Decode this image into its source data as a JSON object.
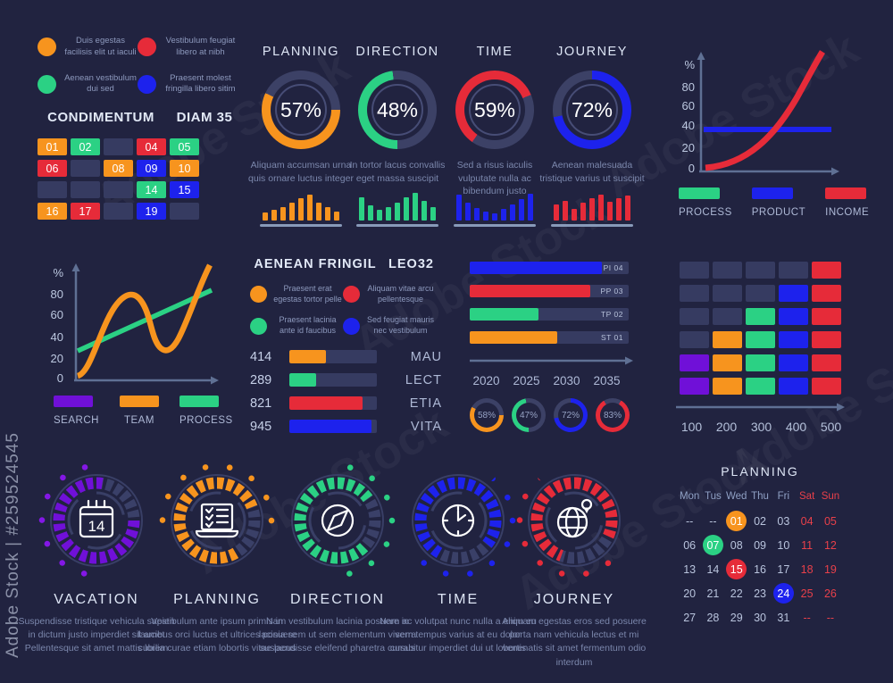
{
  "palette": {
    "o": "#f7941e",
    "g": "#2bd184",
    "r": "#e62b39",
    "b": "#1d22ed",
    "p": "#7010d8",
    "slate": "#363b61",
    "bg": "#212340",
    "weekend_red": "#e8404a"
  },
  "watermark": {
    "vertical": "Adobe Stock | #259524545",
    "tile": "Adobe Stock"
  },
  "legend_panel": {
    "items": [
      {
        "c": "o",
        "text": "Duis egestas facilisis elit ut iaculi"
      },
      {
        "c": "r",
        "text": "Vestibulum feugiat libero at nibh"
      },
      {
        "c": "g",
        "text": "Aenean vestibulum dui sed"
      },
      {
        "c": "b",
        "text": "Praesent molest fringilla libero sitim"
      }
    ],
    "title_left": "CONDIMENTUM",
    "title_right": "DIAM 35",
    "grid": [
      {
        "t": "01",
        "c": "o"
      },
      {
        "t": "02",
        "c": "g"
      },
      {
        "t": "",
        "c": "s"
      },
      {
        "t": "04",
        "c": "r"
      },
      {
        "t": "05",
        "c": "g"
      },
      {
        "t": "06",
        "c": "r"
      },
      {
        "t": "",
        "c": "s"
      },
      {
        "t": "08",
        "c": "o"
      },
      {
        "t": "09",
        "c": "b"
      },
      {
        "t": "10",
        "c": "o"
      },
      {
        "t": "",
        "c": "s"
      },
      {
        "t": "",
        "c": "s"
      },
      {
        "t": "",
        "c": "s"
      },
      {
        "t": "14",
        "c": "g"
      },
      {
        "t": "15",
        "c": "b"
      },
      {
        "t": "16",
        "c": "o"
      },
      {
        "t": "17",
        "c": "r"
      },
      {
        "t": "",
        "c": "s"
      },
      {
        "t": "19",
        "c": "b"
      },
      {
        "t": "",
        "c": "s"
      }
    ]
  },
  "donut_cards": [
    {
      "title": "PLANNING",
      "value": "57%",
      "donut": {
        "pct": 57,
        "from": 90,
        "c": "o"
      },
      "desc": "Aliquam accumsan urna quis ornare luctus integer",
      "bars": [
        28,
        38,
        48,
        62,
        78,
        90,
        62,
        48,
        30
      ],
      "bars_c": "o"
    },
    {
      "title": "DIRECTION",
      "value": "48%",
      "donut": {
        "pct": 48,
        "from": 180,
        "c": "g"
      },
      "desc": "In tortor lacus convallis eget massa suscipit",
      "bars": [
        82,
        52,
        38,
        46,
        62,
        82,
        96,
        70,
        48
      ],
      "bars_c": "g"
    },
    {
      "title": "TIME",
      "value": "59%",
      "donut": {
        "pct": 59,
        "from": 215,
        "c": "r"
      },
      "desc": "Sed a risus iaculis vulputate nulla ac bibendum justo",
      "bars": [
        92,
        62,
        45,
        30,
        26,
        40,
        56,
        74,
        94
      ],
      "bars_c": "b"
    },
    {
      "title": "JOURNEY",
      "value": "72%",
      "donut": {
        "pct": 72,
        "from": 0,
        "c": "b"
      },
      "desc": "Aenean malesuada tristique varius ut suscipit",
      "bars": [
        56,
        70,
        40,
        62,
        78,
        92,
        66,
        78,
        88
      ],
      "bars_c": "r"
    }
  ],
  "growth_chart": {
    "ylabel": "%",
    "yticks": [
      "80",
      "60",
      "40",
      "20",
      "0"
    ],
    "legend": [
      {
        "c": "g",
        "label": "PROCESS"
      },
      {
        "c": "b",
        "label": "PRODUCT"
      },
      {
        "c": "r",
        "label": "INCOME"
      }
    ]
  },
  "wave_chart": {
    "ylabel": "%",
    "yticks": [
      "80",
      "60",
      "40",
      "20",
      "0"
    ],
    "legend": [
      {
        "c": "p",
        "label": "SEARCH"
      },
      {
        "c": "o",
        "label": "TEAM"
      },
      {
        "c": "g",
        "label": "PROCESS"
      }
    ]
  },
  "fringil": {
    "title": "AENEAN FRINGIL",
    "subtitle": "LEO32",
    "legend": [
      {
        "c": "o",
        "text": "Praesent erat egestas tortor pelle"
      },
      {
        "c": "r",
        "text": "Aliquam vitae arcu pellentesque"
      },
      {
        "c": "g",
        "text": "Praesent lacinia ante id faucibus"
      },
      {
        "c": "b",
        "text": "Sed feugiat mauris nec vestibulum"
      }
    ],
    "rows": [
      {
        "value": "414",
        "pct": 42,
        "c": "o",
        "label": "MAU"
      },
      {
        "value": "289",
        "pct": 31,
        "c": "g",
        "label": "LECT"
      },
      {
        "value": "821",
        "pct": 84,
        "c": "r",
        "label": "ETIA"
      },
      {
        "value": "945",
        "pct": 94,
        "c": "b",
        "label": "VITA"
      }
    ]
  },
  "timeline_panel": {
    "bars": [
      {
        "label": "PI 04",
        "pct": 83,
        "c": "b"
      },
      {
        "label": "PP 03",
        "pct": 76,
        "c": "r"
      },
      {
        "label": "TP 02",
        "pct": 43,
        "c": "g"
      },
      {
        "label": "ST 01",
        "pct": 55,
        "c": "o"
      }
    ],
    "xticks": [
      "2020",
      "2025",
      "2030",
      "2035"
    ],
    "gauges": [
      {
        "value": "58%",
        "donut": {
          "pct": 58,
          "from": 90,
          "c": "o"
        }
      },
      {
        "value": "47%",
        "donut": {
          "pct": 47,
          "from": 180,
          "c": "g"
        }
      },
      {
        "value": "72%",
        "donut": {
          "pct": 72,
          "from": 0,
          "c": "b"
        }
      },
      {
        "value": "83%",
        "donut": {
          "pct": 83,
          "from": 30,
          "c": "r"
        }
      }
    ]
  },
  "heatmap": {
    "xticks": [
      "100",
      "200",
      "300",
      "400",
      "500"
    ],
    "cells": [
      "s",
      "s",
      "s",
      "s",
      "r",
      "s",
      "s",
      "s",
      "b",
      "r",
      "s",
      "s",
      "g",
      "b",
      "r",
      "s",
      "o",
      "g",
      "b",
      "r",
      "p",
      "o",
      "g",
      "b",
      "r",
      "p",
      "o",
      "g",
      "b",
      "r"
    ]
  },
  "process_circles": [
    {
      "title": "VACATION",
      "c": "p",
      "icon": "calendar-icon",
      "icon_number": "14",
      "desc": "Suspendisse tristique vehicula sapien in dictum justo imperdiet sit amet Pellentesque sit amet mattis lorem"
    },
    {
      "title": "PLANNING",
      "c": "o",
      "icon": "notebook-icon",
      "desc": "Vestibulum ante ipsum primis in faucibus orci luctus et ultrices posuere cubilia curae etiam lobortis vitae lacus"
    },
    {
      "title": "DIRECTION",
      "c": "g",
      "icon": "compass-icon",
      "desc": "Nam vestibulum lacinia posuere in lacinia sem ut sem elementum viverra suspendisse eleifend pharetra cursus"
    },
    {
      "title": "TIME",
      "c": "b",
      "icon": "clock-icon",
      "desc": "Nam ac volutpat nunc nulla a enim eu sem tempus varius at eu dolor curabitur imperdiet dui ut lobortis"
    },
    {
      "title": "JOURNEY",
      "c": "r",
      "icon": "globe-icon",
      "desc": "Aliquam egestas eros sed posuere porta nam vehicula lectus et mi venenatis sit amet fermentum odio interdum"
    }
  ],
  "calendar": {
    "title": "PLANNING",
    "days": [
      "Mon",
      "Tus",
      "Wed",
      "Thu",
      "Fri",
      "Sat",
      "Sun"
    ],
    "rows": [
      [
        {
          "t": "--"
        },
        {
          "t": "--"
        },
        {
          "t": "01",
          "hl": "o"
        },
        {
          "t": "02"
        },
        {
          "t": "03"
        },
        {
          "t": "04",
          "wk": true
        },
        {
          "t": "05",
          "wk": true
        }
      ],
      [
        {
          "t": "06"
        },
        {
          "t": "07",
          "hl": "g"
        },
        {
          "t": "08"
        },
        {
          "t": "09"
        },
        {
          "t": "10"
        },
        {
          "t": "11",
          "wk": true
        },
        {
          "t": "12",
          "wk": true
        }
      ],
      [
        {
          "t": "13"
        },
        {
          "t": "14"
        },
        {
          "t": "15",
          "hl": "r"
        },
        {
          "t": "16"
        },
        {
          "t": "17"
        },
        {
          "t": "18",
          "wk": true
        },
        {
          "t": "19",
          "wk": true
        }
      ],
      [
        {
          "t": "20"
        },
        {
          "t": "21"
        },
        {
          "t": "22"
        },
        {
          "t": "23"
        },
        {
          "t": "24",
          "hl": "b"
        },
        {
          "t": "25",
          "wk": true
        },
        {
          "t": "26",
          "wk": true
        }
      ],
      [
        {
          "t": "27"
        },
        {
          "t": "28"
        },
        {
          "t": "29"
        },
        {
          "t": "30"
        },
        {
          "t": "31"
        },
        {
          "t": "--",
          "wk": true
        },
        {
          "t": "--",
          "wk": true
        }
      ]
    ]
  },
  "chart_data": [
    {
      "type": "pie",
      "variant": "donut-gauge",
      "items": [
        {
          "label": "PLANNING",
          "value": 57
        },
        {
          "label": "DIRECTION",
          "value": 48
        },
        {
          "label": "TIME",
          "value": 59
        },
        {
          "label": "JOURNEY",
          "value": 72
        }
      ]
    },
    {
      "type": "bar",
      "title": "planning-mini-bars",
      "values": [
        28,
        38,
        48,
        62,
        78,
        90,
        62,
        48,
        30
      ],
      "color": "#f7941e"
    },
    {
      "type": "bar",
      "title": "direction-mini-bars",
      "values": [
        82,
        52,
        38,
        46,
        62,
        82,
        96,
        70,
        48
      ],
      "color": "#2bd184"
    },
    {
      "type": "bar",
      "title": "time-mini-bars",
      "values": [
        92,
        62,
        45,
        30,
        26,
        40,
        56,
        74,
        94
      ],
      "color": "#1d22ed"
    },
    {
      "type": "bar",
      "title": "journey-mini-bars",
      "values": [
        56,
        70,
        40,
        62,
        78,
        92,
        66,
        78,
        88
      ],
      "color": "#e62b39"
    },
    {
      "type": "line",
      "title": "growth-chart",
      "ylabel": "%",
      "ylim": [
        0,
        100
      ],
      "yticks": [
        0,
        20,
        40,
        60,
        80
      ],
      "legend_position": "bottom",
      "series": [
        {
          "name": "INCOME",
          "color": "#e62b39",
          "y": [
            2,
            6,
            13,
            24,
            38,
            56,
            78,
            100
          ]
        },
        {
          "name": "PRODUCT",
          "color": "#1d22ed",
          "y": [
            38,
            38,
            38,
            38,
            38,
            38,
            38,
            38
          ]
        },
        {
          "name": "PROCESS",
          "color": "#2bd184",
          "y": []
        }
      ]
    },
    {
      "type": "line",
      "title": "wave-chart",
      "ylabel": "%",
      "ylim": [
        0,
        100
      ],
      "yticks": [
        0,
        20,
        40,
        60,
        80
      ],
      "legend_position": "bottom",
      "series": [
        {
          "name": "TEAM",
          "color": "#f7941e",
          "y": [
            2,
            18,
            55,
            78,
            80,
            62,
            35,
            30,
            48,
            78,
            95
          ]
        },
        {
          "name": "PROCESS",
          "color": "#2bd184",
          "y": [
            25,
            82
          ]
        },
        {
          "name": "SEARCH",
          "color": "#7010d8",
          "y": []
        }
      ]
    },
    {
      "type": "bar",
      "variant": "horizontal",
      "title": "AENEAN FRINGIL LEO32",
      "categories": [
        "MAU",
        "LECT",
        "ETIA",
        "VITA"
      ],
      "values": [
        414,
        289,
        821,
        945
      ],
      "fill_pct": [
        42,
        31,
        84,
        94
      ]
    },
    {
      "type": "bar",
      "variant": "horizontal",
      "title": "timeline-bars",
      "categories": [
        "PI 04",
        "PP 03",
        "TP 02",
        "ST 01"
      ],
      "fill_pct": [
        83,
        76,
        43,
        55
      ],
      "xticks": [
        2020,
        2025,
        2030,
        2035
      ],
      "gauges": [
        58,
        47,
        72,
        83
      ]
    },
    {
      "type": "heatmap",
      "xticks": [
        100,
        200,
        300,
        400,
        500
      ],
      "matrix": [
        [
          "s",
          "s",
          "s",
          "s",
          "r"
        ],
        [
          "s",
          "s",
          "s",
          "b",
          "r"
        ],
        [
          "s",
          "s",
          "g",
          "b",
          "r"
        ],
        [
          "s",
          "o",
          "g",
          "b",
          "r"
        ],
        [
          "p",
          "o",
          "g",
          "b",
          "r"
        ],
        [
          "p",
          "o",
          "g",
          "b",
          "r"
        ]
      ],
      "legend": {
        "s": "empty",
        "p": "purple",
        "o": "orange",
        "g": "green",
        "b": "blue",
        "r": "red"
      }
    }
  ]
}
